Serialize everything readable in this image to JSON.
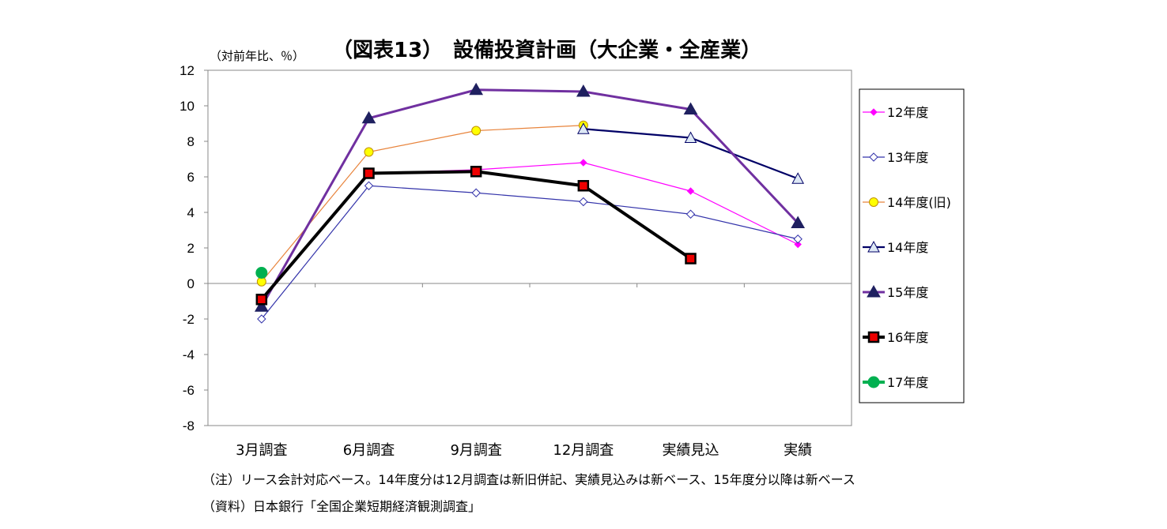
{
  "chart_data": {
    "type": "line",
    "title": "（図表13）　設備投資計画（大企業・全産業）",
    "ylabel": "（対前年比、％）",
    "xlabel": "",
    "categories": [
      "3月調査",
      "6月調査",
      "9月調査",
      "12月調査",
      "実績見込",
      "実績"
    ],
    "ylim": [
      -8,
      12
    ],
    "yticks": [
      12,
      10,
      8,
      6,
      4,
      2,
      0,
      -2,
      -4,
      -6,
      -8
    ],
    "grid": false,
    "legend": "right",
    "series": [
      {
        "name": "12年度",
        "values": [
          -1.0,
          6.2,
          6.4,
          6.8,
          5.2,
          2.2
        ],
        "color": "#ff00ff",
        "marker": "diamond-filled",
        "width": 1.2
      },
      {
        "name": "13年度",
        "values": [
          -2.0,
          5.5,
          5.1,
          4.6,
          3.9,
          2.5
        ],
        "color": "#3333aa",
        "marker": "diamond-open",
        "width": 1.2
      },
      {
        "name": "14年度(旧)",
        "values": [
          0.1,
          7.4,
          8.6,
          8.9,
          null,
          null
        ],
        "color": "#e8843c",
        "marker": "circle-yellow",
        "width": 1.2
      },
      {
        "name": "14年度",
        "values": [
          null,
          null,
          null,
          8.7,
          8.2,
          5.9
        ],
        "color": "#000066",
        "marker": "triangle-open",
        "width": 2.2
      },
      {
        "name": "15年度",
        "values": [
          -1.3,
          9.3,
          10.9,
          10.8,
          9.8,
          3.4
        ],
        "color": "#7030a0",
        "marker": "triangle-navy",
        "width": 3
      },
      {
        "name": "16年度",
        "values": [
          -0.9,
          6.2,
          6.3,
          5.5,
          1.4,
          null
        ],
        "color": "#000000",
        "marker": "square-red",
        "width": 4
      },
      {
        "name": "17年度",
        "values": [
          0.6,
          null,
          null,
          null,
          null,
          null
        ],
        "color": "#00b050",
        "marker": "circle-green",
        "width": 4
      }
    ]
  },
  "notes": {
    "note1": "（注）リース会計対応ベース。14年度分は12月調査は新旧併記、実績見込みは新ベース、15年度分以降は新ベース",
    "note2": "（資料）日本銀行「全国企業短期経済観測調査」"
  }
}
